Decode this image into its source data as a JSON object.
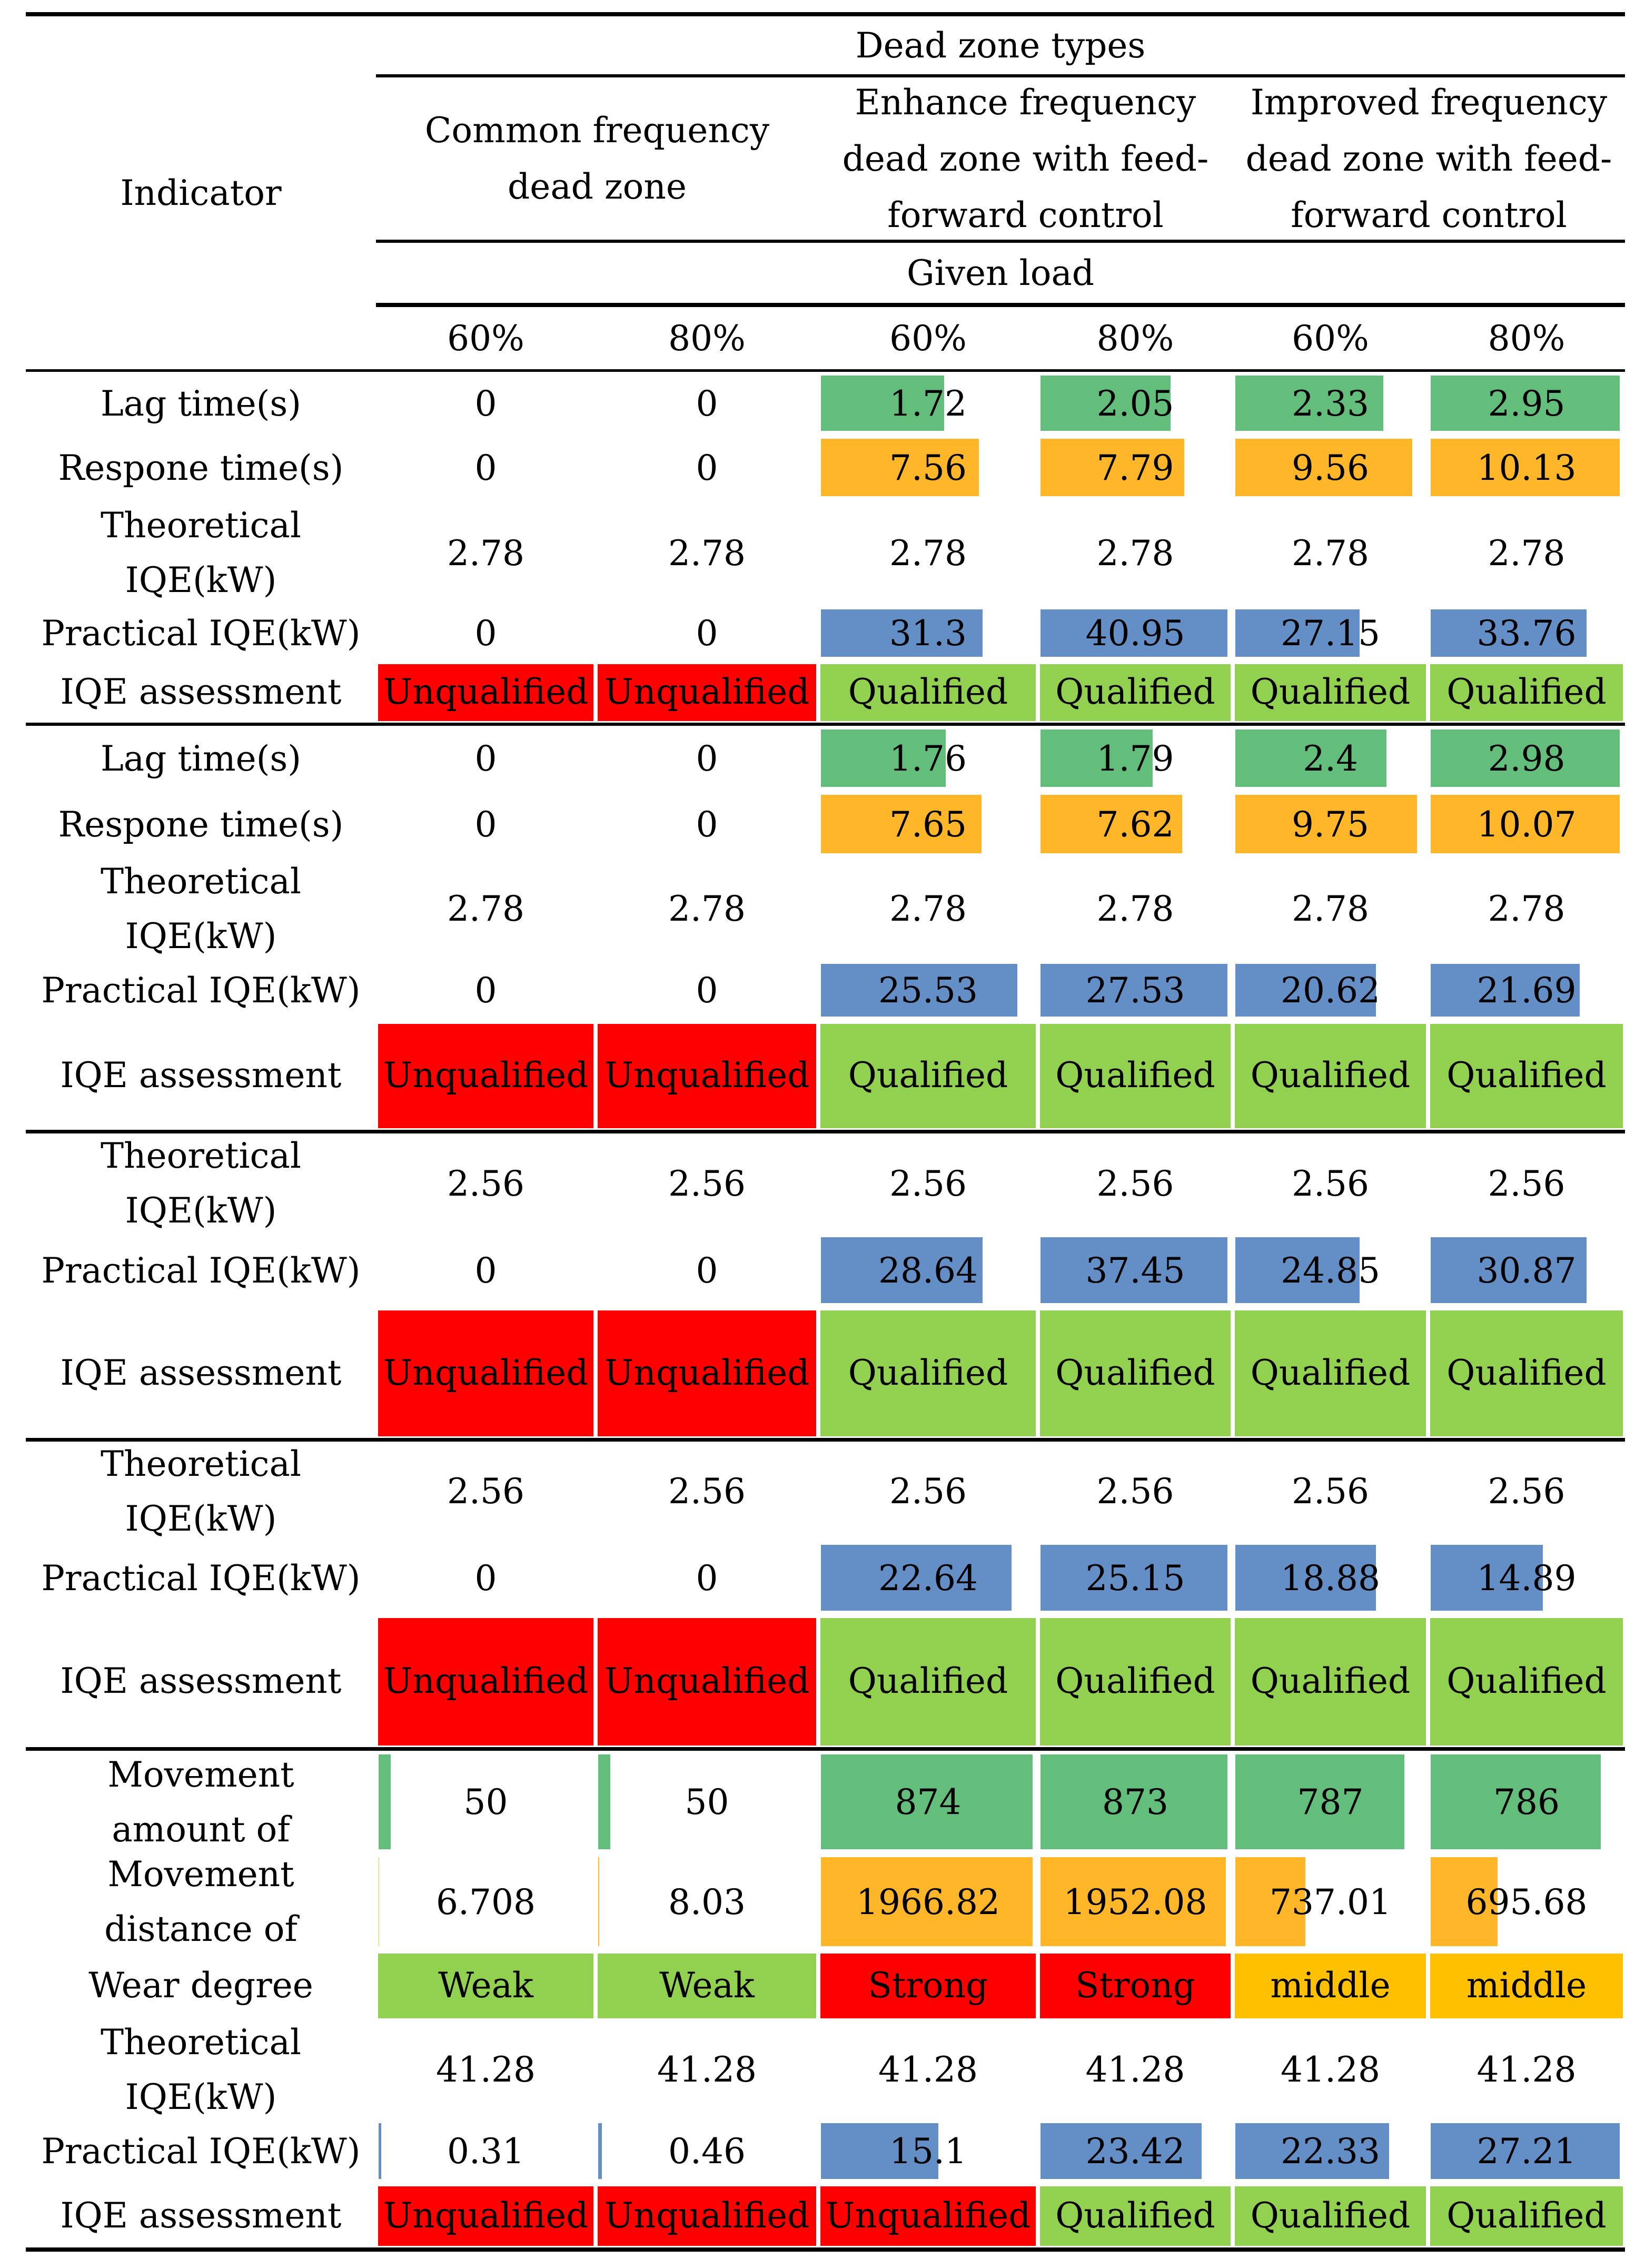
{
  "table": {
    "header": {
      "indicator_label": "Indicator",
      "group_title": "Dead zone types",
      "dead_zone_types": [
        {
          "lines": [
            "Common frequency",
            "dead zone"
          ]
        },
        {
          "lines": [
            "Enhance frequency",
            "dead zone with feed-",
            "forward control"
          ]
        },
        {
          "lines": [
            "Improved frequency",
            "dead zone with feed-",
            "forward control"
          ]
        }
      ],
      "load_title": "Given load",
      "loads": [
        "60%",
        "80%",
        "60%",
        "80%",
        "60%",
        "80%"
      ]
    },
    "sections": [
      {
        "rows": [
          {
            "indicator": [
              "Lag time(s)"
            ],
            "bar_color": "#63BE7B",
            "values": [
              "0",
              "0",
              "1.72",
              "2.05",
              "2.33",
              "2.95"
            ]
          },
          {
            "indicator": [
              "Respone time(s)"
            ],
            "bar_color": "#FFB628",
            "values": [
              "0",
              "0",
              "7.56",
              "7.79",
              "9.56",
              "10.13"
            ]
          },
          {
            "indicator": [
              "Theoretical",
              "IQE(kW)"
            ],
            "values": [
              "2.78",
              "2.78",
              "2.78",
              "2.78",
              "2.78",
              "2.78"
            ]
          },
          {
            "indicator": [
              "Practical IQE(kW)"
            ],
            "bar_color": "#638EC6",
            "values": [
              "0",
              "0",
              "31.3",
              "40.95",
              "27.15",
              "33.76"
            ]
          },
          {
            "indicator": [
              "IQE assessment"
            ],
            "values": [
              "Unqualified",
              "Unqualified",
              "Qualified",
              "Qualified",
              "Qualified",
              "Qualified"
            ]
          }
        ]
      },
      {
        "rows": [
          {
            "indicator": [
              "Lag time(s)"
            ],
            "bar_color": "#63BE7B",
            "values": [
              "0",
              "0",
              "1.76",
              "1.79",
              "2.4",
              "2.98"
            ]
          },
          {
            "indicator": [
              "Respone time(s)"
            ],
            "bar_color": "#FFB628",
            "values": [
              "0",
              "0",
              "7.65",
              "7.62",
              "9.75",
              "10.07"
            ]
          },
          {
            "indicator": [
              "Theoretical",
              "IQE(kW)"
            ],
            "values": [
              "2.78",
              "2.78",
              "2.78",
              "2.78",
              "2.78",
              "2.78"
            ]
          },
          {
            "indicator": [
              "Practical IQE(kW)"
            ],
            "bar_color": "#638EC6",
            "values": [
              "0",
              "0",
              "25.53",
              "27.53",
              "20.62",
              "21.69"
            ]
          },
          {
            "indicator": [
              "IQE assessment"
            ],
            "values": [
              "Unqualified",
              "Unqualified",
              "Qualified",
              "Qualified",
              "Qualified",
              "Qualified"
            ]
          }
        ]
      },
      {
        "rows": [
          {
            "indicator": [
              "Theoretical",
              "IQE(kW)"
            ],
            "values": [
              "2.56",
              "2.56",
              "2.56",
              "2.56",
              "2.56",
              "2.56"
            ]
          },
          {
            "indicator": [
              "Practical IQE(kW)"
            ],
            "bar_color": "#638EC6",
            "values": [
              "0",
              "0",
              "28.64",
              "37.45",
              "24.85",
              "30.87"
            ]
          },
          {
            "indicator": [
              "IQE assessment"
            ],
            "values": [
              "Unqualified",
              "Unqualified",
              "Qualified",
              "Qualified",
              "Qualified",
              "Qualified"
            ]
          }
        ]
      },
      {
        "rows": [
          {
            "indicator": [
              "Theoretical",
              "IQE(kW)"
            ],
            "values": [
              "2.56",
              "2.56",
              "2.56",
              "2.56",
              "2.56",
              "2.56"
            ]
          },
          {
            "indicator": [
              "Practical IQE(kW)"
            ],
            "bar_color": "#638EC6",
            "values": [
              "0",
              "0",
              "22.64",
              "25.15",
              "18.88",
              "14.89"
            ]
          },
          {
            "indicator": [
              "IQE assessment"
            ],
            "values": [
              "Unqualified",
              "Unqualified",
              "Qualified",
              "Qualified",
              "Qualified",
              "Qualified"
            ]
          }
        ]
      },
      {
        "rows": [
          {
            "indicator": [
              "Movement",
              "amount of"
            ],
            "bar_color": "#63BE7B",
            "values": [
              "50",
              "50",
              "874",
              "873",
              "787",
              "786"
            ]
          },
          {
            "indicator": [
              "Movement",
              "distance of"
            ],
            "bar_color": "#FFB628",
            "values": [
              "6.708",
              "8.03",
              "1966.82",
              "1952.08",
              "737.01",
              "695.68"
            ]
          },
          {
            "indicator": [
              "Wear degree"
            ],
            "values": [
              "Weak",
              "Weak",
              "Strong",
              "Strong",
              "middle",
              "middle"
            ]
          },
          {
            "indicator": [
              "Theoretical",
              "IQE(kW)"
            ],
            "values": [
              "41.28",
              "41.28",
              "41.28",
              "41.28",
              "41.28",
              "41.28"
            ]
          },
          {
            "indicator": [
              "Practical IQE(kW)"
            ],
            "bar_color": "#638EC6",
            "values": [
              "0.31",
              "0.46",
              "15.1",
              "23.42",
              "22.33",
              "27.21"
            ]
          },
          {
            "indicator": [
              "IQE assessment"
            ],
            "values": [
              "Unqualified",
              "Unqualified",
              "Unqualified",
              "Qualified",
              "Qualified",
              "Qualified"
            ]
          }
        ]
      }
    ]
  },
  "colors": {
    "text": "#000000",
    "rules": "#000000",
    "status_fill": {
      "Unqualified": "#FF0000",
      "Qualified": "#92D050",
      "Weak": "#92D050",
      "Strong": "#FF0000",
      "middle": "#FFC000"
    }
  }
}
